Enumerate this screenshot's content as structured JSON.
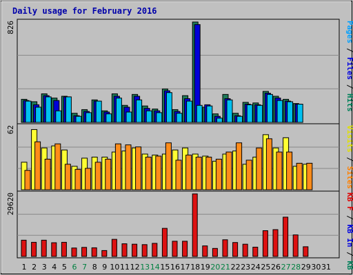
{
  "chart_data": [
    {
      "type": "bar",
      "title": "Daily usage for February 2016",
      "ylabel_max": "826",
      "ylim": [
        0,
        826
      ],
      "grid": true,
      "legend": "right-vertical",
      "legend_parts": [
        {
          "text": "Pages",
          "color": "#00a0ff"
        },
        {
          "text": " / ",
          "color": "#000000"
        },
        {
          "text": "Files",
          "color": "#0000e0"
        },
        {
          "text": " / ",
          "color": "#000000"
        },
        {
          "text": "Hits",
          "color": "#00805a"
        }
      ],
      "categories": [
        "1",
        "2",
        "3",
        "4",
        "5",
        "6",
        "7",
        "8",
        "9",
        "10",
        "11",
        "12",
        "13",
        "14",
        "15",
        "16",
        "17",
        "18",
        "19",
        "20",
        "21",
        "22",
        "23",
        "24",
        "25",
        "26",
        "27",
        "28",
        "29",
        "30",
        "31"
      ],
      "series": [
        {
          "name": "Hits",
          "color": "#1f7a5a",
          "values": [
            190,
            170,
            235,
            200,
            215,
            75,
            105,
            185,
            95,
            235,
            140,
            230,
            135,
            110,
            275,
            105,
            220,
            826,
            125,
            70,
            230,
            75,
            165,
            160,
            255,
            215,
            190,
            155,
            0,
            0,
            0
          ]
        },
        {
          "name": "Files",
          "color": "#0000d8",
          "values": [
            180,
            145,
            220,
            180,
            210,
            55,
            90,
            175,
            85,
            215,
            125,
            215,
            115,
            95,
            260,
            90,
            195,
            805,
            145,
            50,
            195,
            55,
            150,
            145,
            240,
            200,
            175,
            150,
            0,
            0,
            0
          ]
        },
        {
          "name": "Pages",
          "color": "#00c0f0",
          "values": [
            175,
            125,
            210,
            95,
            210,
            50,
            80,
            175,
            70,
            200,
            85,
            185,
            95,
            80,
            245,
            75,
            175,
            140,
            135,
            35,
            185,
            50,
            145,
            140,
            230,
            180,
            170,
            150,
            0,
            0,
            0
          ]
        }
      ]
    },
    {
      "type": "bar",
      "ylabel_max": "62",
      "ylim": [
        0,
        62
      ],
      "grid": true,
      "legend": "right-vertical",
      "legend_parts": [
        {
          "text": "Visits",
          "color": "#e0e000"
        },
        {
          "text": " / ",
          "color": "#000000"
        },
        {
          "text": "Sites",
          "color": "#ff8000"
        }
      ],
      "categories": [
        "1",
        "2",
        "3",
        "4",
        "5",
        "6",
        "7",
        "8",
        "9",
        "10",
        "11",
        "12",
        "13",
        "14",
        "15",
        "16",
        "17",
        "18",
        "19",
        "20",
        "21",
        "22",
        "23",
        "24",
        "25",
        "26",
        "27",
        "28",
        "29",
        "30",
        "31"
      ],
      "series": [
        {
          "name": "Visits",
          "color": "#ffff33",
          "values": [
            27,
            59,
            41,
            43,
            39,
            23,
            31,
            32,
            32,
            37,
            38,
            41,
            35,
            34,
            35,
            39,
            41,
            35,
            33,
            28,
            35,
            38,
            25,
            32,
            54,
            41,
            51,
            23,
            25,
            0,
            0
          ]
        },
        {
          "name": "Sites",
          "color": "#ff8c1a",
          "values": [
            19,
            47,
            30,
            45,
            25,
            20,
            21,
            27,
            30,
            45,
            44,
            42,
            32,
            33,
            46,
            29,
            34,
            32,
            32,
            30,
            37,
            46,
            29,
            41,
            50,
            37,
            37,
            26,
            26,
            0,
            0
          ]
        }
      ]
    },
    {
      "type": "bar",
      "ylabel_max": "29620",
      "ylim": [
        0,
        29620
      ],
      "grid": true,
      "legend": "right-vertical",
      "legend_parts": [
        {
          "text": "KB F",
          "color": "#e00000"
        },
        {
          "text": " / ",
          "color": "#000000"
        },
        {
          "text": "KB In",
          "color": "#0000e0"
        },
        {
          "text": " / ",
          "color": "#000000"
        },
        {
          "text": "KB Out",
          "color": "#00805a"
        }
      ],
      "categories": [
        "1",
        "2",
        "3",
        "4",
        "5",
        "6",
        "7",
        "8",
        "9",
        "10",
        "11",
        "12",
        "13",
        "14",
        "15",
        "16",
        "17",
        "18",
        "19",
        "20",
        "21",
        "22",
        "23",
        "24",
        "25",
        "26",
        "27",
        "28",
        "29",
        "30",
        "31"
      ],
      "series": [
        {
          "name": "KB F",
          "color": "#dd1111",
          "values": [
            7700,
            6700,
            7700,
            6500,
            6700,
            4000,
            4300,
            4100,
            2800,
            8100,
            6000,
            5800,
            5600,
            6200,
            13300,
            7200,
            7200,
            29620,
            5000,
            3800,
            7900,
            6600,
            5800,
            4400,
            12200,
            12700,
            18600,
            10200,
            4600,
            0,
            0
          ]
        }
      ],
      "x_tick_colors": [
        "#000000",
        "#000000",
        "#000000",
        "#000000",
        "#000000",
        "#008040",
        "#008040",
        "#000000",
        "#000000",
        "#000000",
        "#000000",
        "#000000",
        "#008040",
        "#008040",
        "#000000",
        "#000000",
        "#000000",
        "#000000",
        "#000000",
        "#008040",
        "#008040",
        "#000000",
        "#000000",
        "#000000",
        "#000000",
        "#000000",
        "#008040",
        "#008040",
        "#000000",
        "#000000",
        "#000000"
      ]
    }
  ]
}
